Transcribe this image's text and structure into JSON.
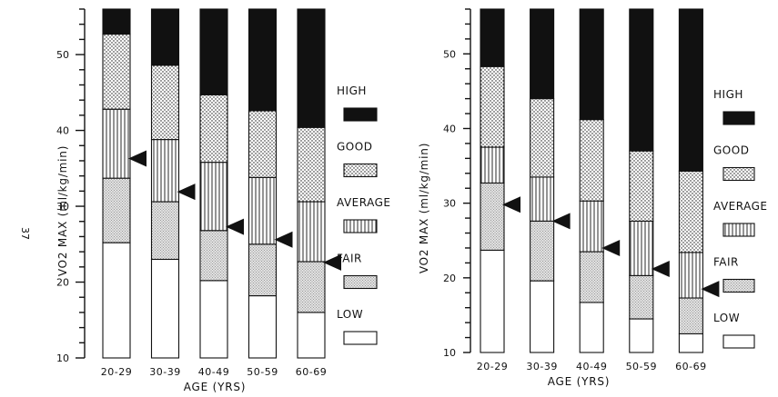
{
  "side_mark": "37",
  "colors": {
    "ink": "#111111",
    "background": "#ffffff",
    "high": "#111111",
    "good": "dotted",
    "average": "vertical-hatch",
    "fair": "stippled",
    "low": "#ffffff",
    "arrow": "#111111"
  },
  "chart_data": [
    {
      "type": "bar",
      "stacked": true,
      "panel": "left",
      "xlabel": "AGE (YRS)",
      "ylabel": "VO2 MAX  (ml/kg/min)",
      "ylim": [
        10,
        56
      ],
      "yticks": [
        10,
        20,
        30,
        40,
        50
      ],
      "grid": false,
      "legend_placement": "right",
      "categories": [
        "20-29",
        "30-39",
        "40-49",
        "50-59",
        "60-69"
      ],
      "bar_bottom": [
        10,
        10,
        10,
        10,
        10
      ],
      "bar_top": [
        56,
        56,
        56,
        56,
        56
      ],
      "boundaries": {
        "low_fair": [
          25.2,
          23,
          20.2,
          18.2,
          16
        ],
        "fair_average": [
          33.7,
          30.6,
          26.8,
          25,
          22.7
        ],
        "average_good": [
          42.8,
          38.8,
          35.8,
          33.8,
          30.6
        ],
        "good_high": [
          52.7,
          48.6,
          44.7,
          42.6,
          40.4
        ]
      },
      "arrows": [
        36.3,
        31.9,
        27.3,
        25.6,
        22.6
      ],
      "legend": [
        "HIGH",
        "GOOD",
        "AVERAGE",
        "FAIR",
        "LOW"
      ]
    },
    {
      "type": "bar",
      "stacked": true,
      "panel": "right",
      "xlabel": "AGE (YRS)",
      "ylabel": "VO2 MAX  (ml/kg/min)",
      "ylim": [
        10,
        56
      ],
      "yticks": [
        10,
        20,
        30,
        40,
        50
      ],
      "grid": false,
      "legend_placement": "right",
      "categories": [
        "20-29",
        "30-39",
        "40-49",
        "50-59",
        "60-69"
      ],
      "bar_bottom": [
        10,
        10,
        10,
        10,
        10
      ],
      "bar_top": [
        56,
        56,
        56,
        56,
        56
      ],
      "boundaries": {
        "low_fair": [
          23.7,
          19.6,
          16.7,
          14.5,
          12.5
        ],
        "fair_average": [
          32.7,
          27.6,
          23.5,
          20.3,
          17.3
        ],
        "average_good": [
          37.5,
          33.5,
          30.3,
          27.6,
          23.4
        ],
        "good_high": [
          48.3,
          44.0,
          41.2,
          37.0,
          34.3
        ]
      },
      "arrows": [
        29.8,
        27.6,
        24.0,
        21.2,
        18.5
      ],
      "legend": [
        "HIGH",
        "GOOD",
        "AVERAGE",
        "FAIR",
        "LOW"
      ]
    }
  ]
}
